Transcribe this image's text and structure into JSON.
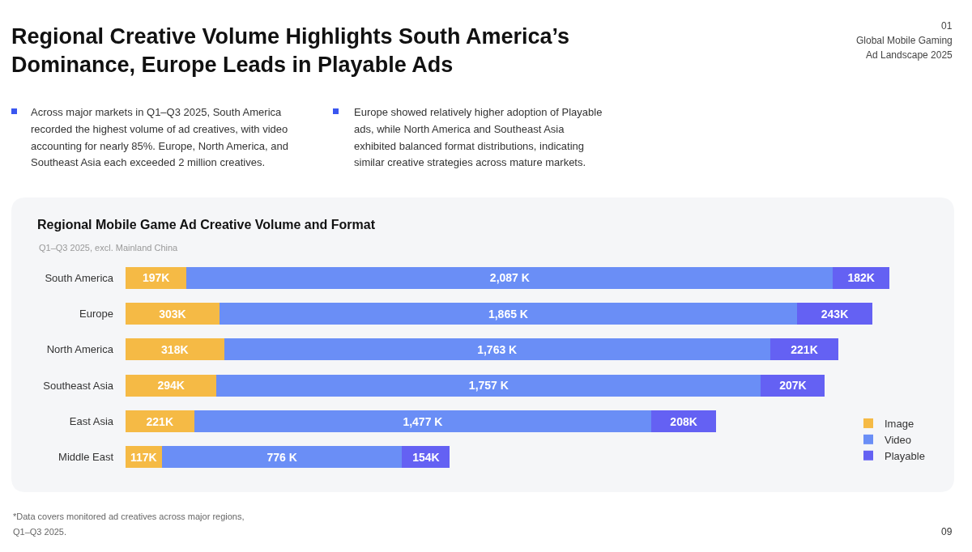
{
  "chart_data": {
    "type": "bar",
    "orientation": "horizontal",
    "stacked": true,
    "title": "Regional Mobile Game Ad Creative Volume and Format",
    "subtitle": "Q1–Q3 2025, excl. Mainland China",
    "categories": [
      "South America",
      "Europe",
      "North America",
      "Southeast Asia",
      "East Asia",
      "Middle East"
    ],
    "series": [
      {
        "name": "Image",
        "color": "#f5ba45",
        "values": [
          197,
          303,
          318,
          294,
          221,
          117
        ],
        "value_labels": [
          "197K",
          "303K",
          "318K",
          "294K",
          "221K",
          "117K"
        ]
      },
      {
        "name": "Video",
        "color": "#6a8ef6",
        "values": [
          2087,
          1865,
          1763,
          1757,
          1477,
          776
        ],
        "value_labels": [
          "2,087 K",
          "1,865 K",
          "1,763 K",
          "1,757 K",
          "1,477 K",
          "776 K"
        ]
      },
      {
        "name": "Playable",
        "color": "#6461f3",
        "values": [
          182,
          243,
          221,
          207,
          208,
          154
        ],
        "value_labels": [
          "182K",
          "243K",
          "221K",
          "207K",
          "208K",
          "154K"
        ]
      }
    ],
    "legend": "bottom right",
    "tick_labels": "y",
    "annotations": [
      "Regional Creative Volume Highlights South America’s\nDominance, Europe Leads in Playable Ads",
      "01\nGlobal Mobile Gaming\nAd Landscape 2025",
      "Across major markets in Q1–Q3 2025, South America\nrecorded the highest volume of ad creatives, with video\naccounting for nearly 85%. Europe, North America, and\nSoutheast Asia each exceeded 2 million creatives.",
      "Europe showed relatively higher adoption of Playable\nads, while North America and Southeast Asia\nexhibited balanced format distributions, indicating\nsimilar creative strategies across mature markets.",
      "*Data covers monitored ad creatives across major regions,\nQ1–Q3 2025.",
      "09"
    ]
  }
}
